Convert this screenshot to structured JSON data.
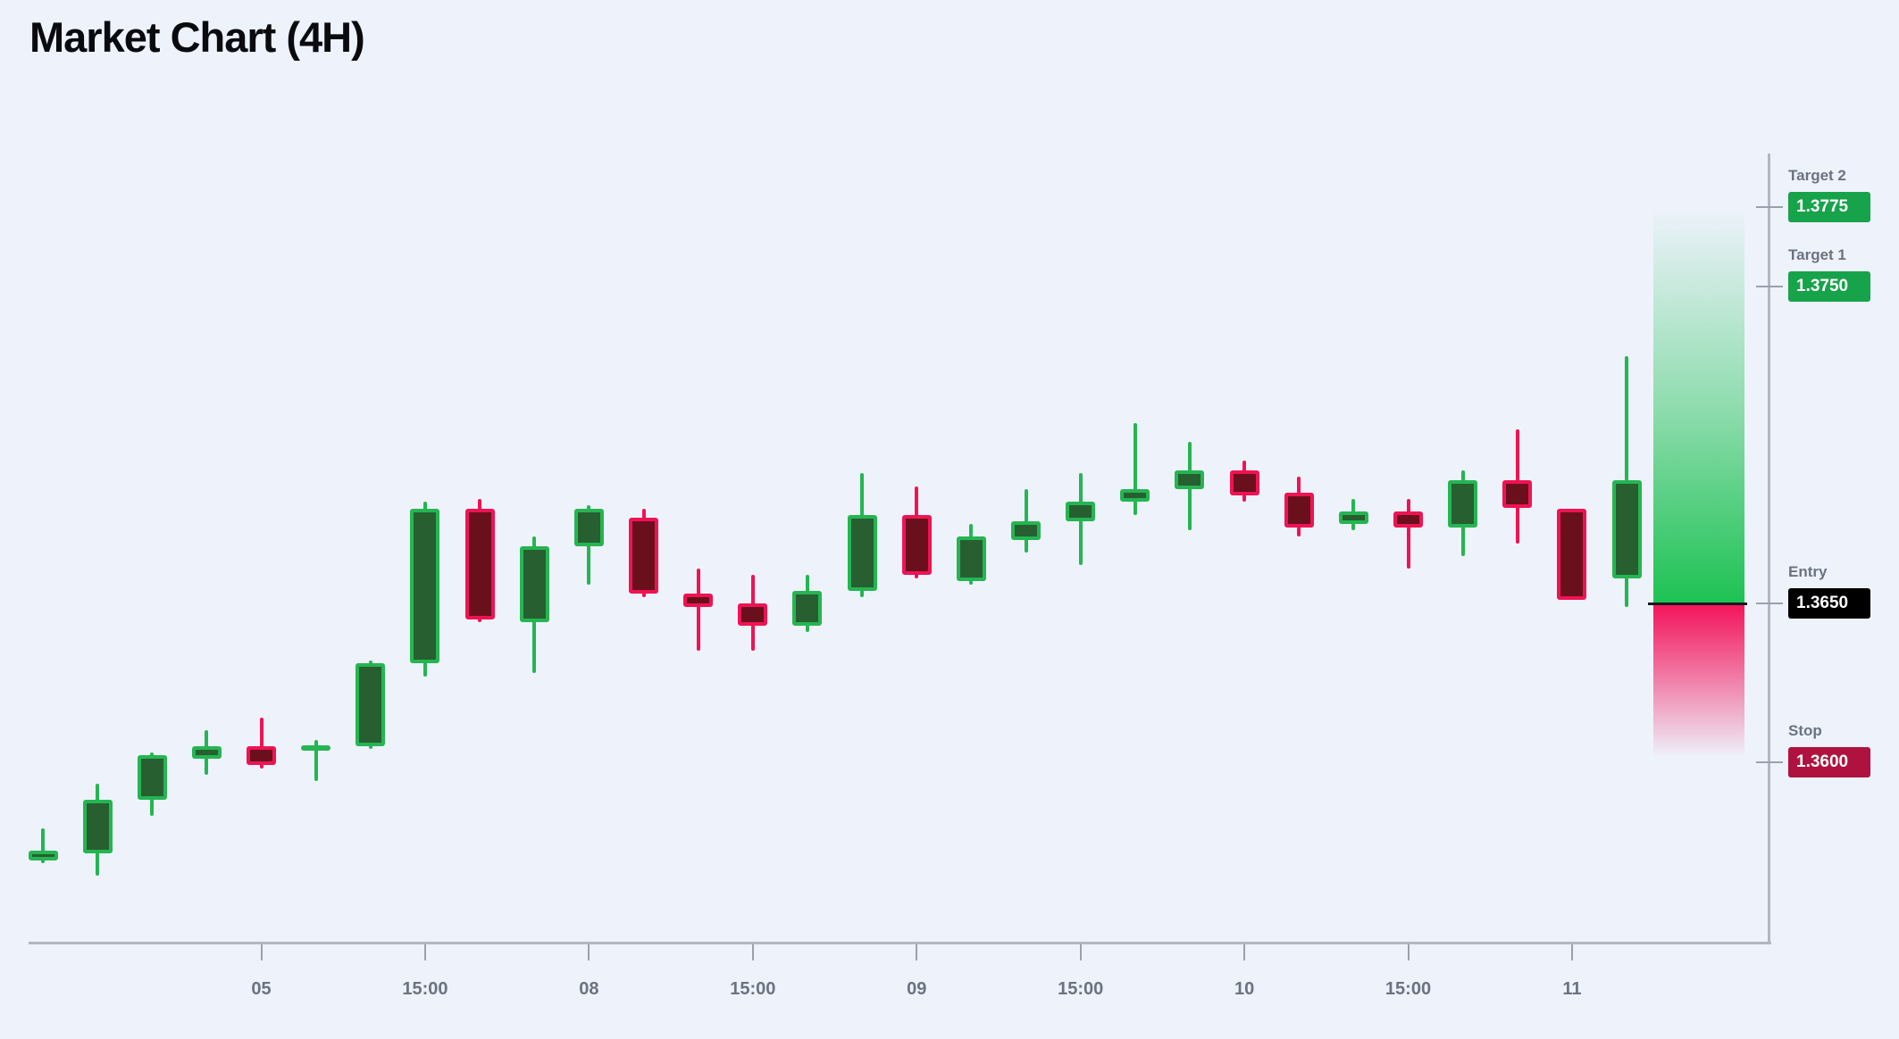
{
  "title": "Market Chart (4H)",
  "colors": {
    "background": "#eef2fb",
    "title_text": "#0a0b0f",
    "axis_line": "#b1b6c1",
    "tick_mark": "#9ba1ac",
    "axis_label": "#6b7280",
    "bull_border": "#25b552",
    "bull_fill": "#275f30",
    "bear_border": "#f01354",
    "bear_fill": "#6a101c",
    "profit_zone": "#1dc253",
    "loss_zone": "#f3135a",
    "entry_line": "#16181d",
    "badge_target": "#17a34a",
    "badge_entry": "#000000",
    "badge_stop": "#b0123f",
    "badge_text": "#ffffff",
    "level_label": "#6b7280"
  },
  "chart_data": {
    "type": "candlestick",
    "title": "Market Chart (4H)",
    "timeframe": "4H",
    "grid": false,
    "y_axis_side": "right",
    "y_range_approx": [
      1.3543,
      1.3792
    ],
    "x_axis_ticks": [
      {
        "index": 4,
        "label": "05"
      },
      {
        "index": 7,
        "label": "15:00"
      },
      {
        "index": 10,
        "label": "08"
      },
      {
        "index": 13,
        "label": "15:00"
      },
      {
        "index": 16,
        "label": "09"
      },
      {
        "index": 19,
        "label": "15:00"
      },
      {
        "index": 22,
        "label": "10"
      },
      {
        "index": 25,
        "label": "15:00"
      },
      {
        "index": 28,
        "label": "11"
      }
    ],
    "price_levels": [
      {
        "name": "Target 2",
        "value": "1.3775",
        "price": 1.3775,
        "badge": "badge_target"
      },
      {
        "name": "Target 1",
        "value": "1.3750",
        "price": 1.375,
        "badge": "badge_target"
      },
      {
        "name": "Entry",
        "value": "1.3650",
        "price": 1.365,
        "badge": "badge_entry"
      },
      {
        "name": "Stop",
        "value": "1.3600",
        "price": 1.36,
        "badge": "badge_stop"
      }
    ],
    "candles": [
      {
        "o": 1.3569,
        "h": 1.3579,
        "l": 1.3568,
        "c": 1.3572
      },
      {
        "o": 1.3571,
        "h": 1.3593,
        "l": 1.3564,
        "c": 1.3588
      },
      {
        "o": 1.3588,
        "h": 1.3603,
        "l": 1.3583,
        "c": 1.3602
      },
      {
        "o": 1.3601,
        "h": 1.361,
        "l": 1.3596,
        "c": 1.3605
      },
      {
        "o": 1.3605,
        "h": 1.3614,
        "l": 1.3598,
        "c": 1.3599
      },
      {
        "o": 1.3604,
        "h": 1.3607,
        "l": 1.3594,
        "c": 1.3605
      },
      {
        "o": 1.3605,
        "h": 1.3632,
        "l": 1.3604,
        "c": 1.3631
      },
      {
        "o": 1.3631,
        "h": 1.3682,
        "l": 1.3627,
        "c": 1.368
      },
      {
        "o": 1.368,
        "h": 1.3683,
        "l": 1.3644,
        "c": 1.3645
      },
      {
        "o": 1.3644,
        "h": 1.3671,
        "l": 1.3628,
        "c": 1.3668
      },
      {
        "o": 1.3668,
        "h": 1.3681,
        "l": 1.3656,
        "c": 1.368
      },
      {
        "o": 1.3677,
        "h": 1.368,
        "l": 1.3652,
        "c": 1.3653
      },
      {
        "o": 1.3653,
        "h": 1.3661,
        "l": 1.3635,
        "c": 1.3649
      },
      {
        "o": 1.365,
        "h": 1.3659,
        "l": 1.3635,
        "c": 1.3643
      },
      {
        "o": 1.3643,
        "h": 1.3659,
        "l": 1.3641,
        "c": 1.3654
      },
      {
        "o": 1.3654,
        "h": 1.3691,
        "l": 1.3652,
        "c": 1.3678
      },
      {
        "o": 1.3678,
        "h": 1.3687,
        "l": 1.3658,
        "c": 1.3659
      },
      {
        "o": 1.3657,
        "h": 1.3675,
        "l": 1.3656,
        "c": 1.3671
      },
      {
        "o": 1.367,
        "h": 1.3686,
        "l": 1.3666,
        "c": 1.3676
      },
      {
        "o": 1.3676,
        "h": 1.3691,
        "l": 1.3662,
        "c": 1.3682
      },
      {
        "o": 1.3682,
        "h": 1.3707,
        "l": 1.3678,
        "c": 1.3686
      },
      {
        "o": 1.3686,
        "h": 1.3701,
        "l": 1.3673,
        "c": 1.3692
      },
      {
        "o": 1.3692,
        "h": 1.3695,
        "l": 1.3682,
        "c": 1.3684
      },
      {
        "o": 1.3685,
        "h": 1.369,
        "l": 1.3671,
        "c": 1.3674
      },
      {
        "o": 1.3675,
        "h": 1.3683,
        "l": 1.3673,
        "c": 1.3679
      },
      {
        "o": 1.3679,
        "h": 1.3683,
        "l": 1.3661,
        "c": 1.3674
      },
      {
        "o": 1.3674,
        "h": 1.3692,
        "l": 1.3665,
        "c": 1.3689
      },
      {
        "o": 1.3689,
        "h": 1.3705,
        "l": 1.3669,
        "c": 1.368
      },
      {
        "o": 1.368,
        "h": 1.368,
        "l": 1.3651,
        "c": 1.3651
      },
      {
        "o": 1.3658,
        "h": 1.3728,
        "l": 1.3649,
        "c": 1.3689
      }
    ]
  }
}
